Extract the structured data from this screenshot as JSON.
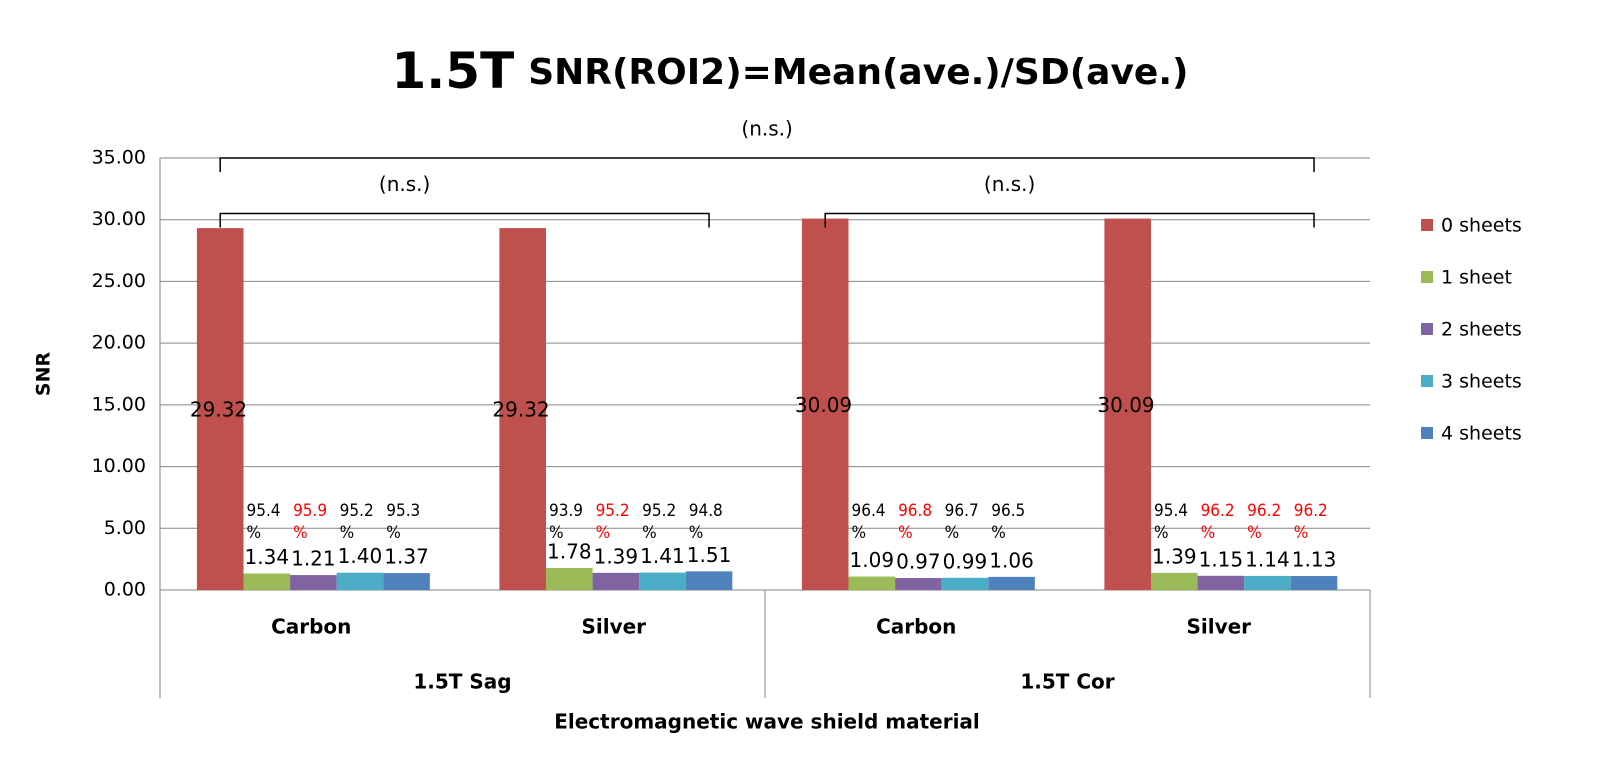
{
  "chart_data": {
    "type": "bar",
    "title": [
      "1.5T",
      "SNR(ROI2)=Mean(ave.)/SD(ave.)"
    ],
    "y_label": "SNR",
    "x_label": "Electromagnetic wave shield material",
    "categories": [
      "Carbon",
      "Silver",
      "Carbon",
      "Silver"
    ],
    "groups": [
      "1.5T Sag",
      "1.5T Cor"
    ],
    "ylim": [
      0,
      35
    ],
    "yticks": [
      {
        "value": 0,
        "label": "0.00"
      },
      {
        "value": 5,
        "label": "5.00"
      },
      {
        "value": 10,
        "label": "10.00"
      },
      {
        "value": 15,
        "label": "15.00"
      },
      {
        "value": 20,
        "label": "20.00"
      },
      {
        "value": 25,
        "label": "25.00"
      },
      {
        "value": 30,
        "label": "30.00"
      },
      {
        "value": 35,
        "label": "35.00"
      }
    ],
    "grid": true,
    "legend": "right",
    "series": [
      {
        "name": "0 sheets",
        "color": "#c0504d",
        "values": [
          29.32,
          29.32,
          30.09,
          30.09
        ],
        "value_labels": [
          "29.32",
          "29.32",
          "30.09",
          "30.09"
        ]
      },
      {
        "name": "1 sheet",
        "color": "#9bbb59",
        "values": [
          1.34,
          1.78,
          1.09,
          1.39
        ],
        "value_labels": [
          "1.34",
          "1.78",
          "1.09",
          "1.39"
        ],
        "percent_labels": [
          "95.4 %",
          "93.9 %",
          "96.4 %",
          "95.4 %"
        ],
        "percent_colors": [
          "#000000",
          "#000000",
          "#000000",
          "#000000"
        ]
      },
      {
        "name": "2 sheets",
        "color": "#8064a2",
        "values": [
          1.21,
          1.39,
          0.97,
          1.15
        ],
        "value_labels": [
          "1.21",
          "1.39",
          "0.97",
          "1.15"
        ],
        "percent_labels": [
          "95.9 %",
          "95.2 %",
          "96.8 %",
          "96.2 %"
        ],
        "percent_colors": [
          "#ff0000",
          "#ff0000",
          "#ff0000",
          "#ff0000"
        ]
      },
      {
        "name": "3 sheets",
        "color": "#4bacc6",
        "values": [
          1.4,
          1.41,
          0.99,
          1.14
        ],
        "value_labels": [
          "1.40",
          "1.41",
          "0.99",
          "1.14"
        ],
        "percent_labels": [
          "95.2 %",
          "95.2 %",
          "96.7 %",
          "96.2 %"
        ],
        "percent_colors": [
          "#000000",
          "#000000",
          "#000000",
          "#ff0000"
        ]
      },
      {
        "name": "4 sheets",
        "color": "#4f81bd",
        "values": [
          1.37,
          1.51,
          1.06,
          1.13
        ],
        "value_labels": [
          "1.37",
          "1.51",
          "1.06",
          "1.13"
        ],
        "percent_labels": [
          "95.3 %",
          "94.8 %",
          "96.5 %",
          "96.2 %"
        ],
        "percent_colors": [
          "#000000",
          "#000000",
          "#000000",
          "#ff0000"
        ]
      }
    ],
    "brackets": [
      {
        "label": "(n.s.)",
        "from": 0,
        "to": 3,
        "y": 35
      },
      {
        "label": "(n.s.)",
        "from": 0,
        "to": 1,
        "y": 30.5
      },
      {
        "label": "(n.s.)",
        "from": 2,
        "to": 3,
        "y": 30.5
      }
    ]
  }
}
